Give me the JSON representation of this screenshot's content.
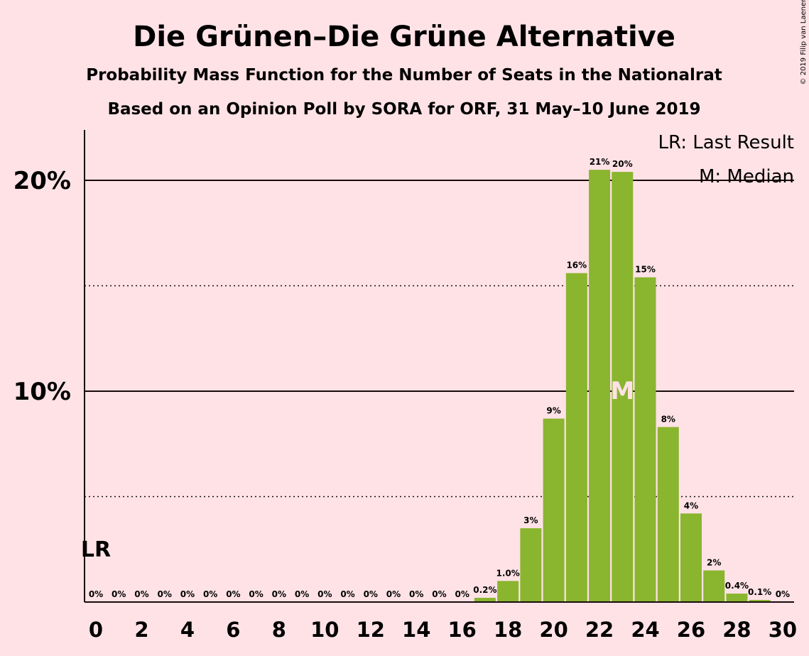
{
  "chart_data": {
    "type": "bar",
    "title": "Die Grünen–Die Grüne Alternative",
    "subtitle": "Probability Mass Function for the Number of Seats in the Nationalrat",
    "subtitle2": "Based on an Opinion Poll by SORA for ORF, 31 May–10 June 2019",
    "x": [
      0,
      1,
      2,
      3,
      4,
      5,
      6,
      7,
      8,
      9,
      10,
      11,
      12,
      13,
      14,
      15,
      16,
      17,
      18,
      19,
      20,
      21,
      22,
      23,
      24,
      25,
      26,
      27,
      28,
      29,
      30
    ],
    "values": [
      0,
      0,
      0,
      0,
      0,
      0,
      0,
      0,
      0,
      0,
      0,
      0,
      0,
      0,
      0,
      0,
      0,
      0.2,
      1.0,
      3.5,
      8.7,
      15.6,
      20.5,
      20.4,
      15.4,
      8.3,
      4.2,
      1.5,
      0.4,
      0.1,
      0
    ],
    "value_labels": [
      "0%",
      "0%",
      "0%",
      "0%",
      "0%",
      "0%",
      "0%",
      "0%",
      "0%",
      "0%",
      "0%",
      "0%",
      "0%",
      "0%",
      "0%",
      "0%",
      "0%",
      "0.2%",
      "1.0%",
      "3%",
      "9%",
      "16%",
      "21%",
      "20%",
      "15%",
      "8%",
      "4%",
      "2%",
      "0.4%",
      "0.1%",
      "0%"
    ],
    "xticks": [
      0,
      2,
      4,
      6,
      8,
      10,
      12,
      14,
      16,
      18,
      20,
      22,
      24,
      26,
      28,
      30
    ],
    "yticks": [
      10,
      20
    ],
    "ytick_labels": [
      "10%",
      "20%"
    ],
    "dotted_gridlines": [
      5,
      15
    ],
    "ylim": [
      0,
      22.4
    ],
    "xlim": [
      -0.5,
      30.5
    ],
    "last_result_seat": 0,
    "median_seat": 23,
    "bar_color": "#8ab52f",
    "legend": [
      "LR: Last Result",
      "M: Median"
    ],
    "legend_position": "top-right",
    "lr_marker": "LR",
    "median_marker": "M",
    "copyright": "© 2019 Filip van Laenen"
  }
}
